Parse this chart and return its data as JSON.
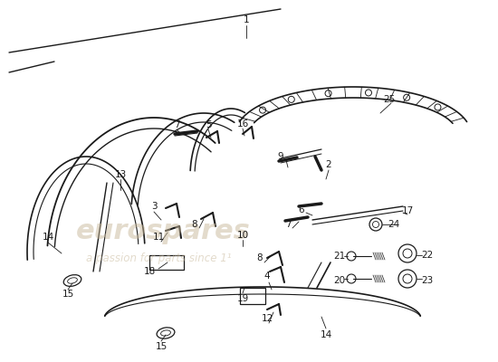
{
  "bg_color": "#ffffff",
  "line_color": "#1a1a1a",
  "watermark_color": "#c8b89a",
  "fig_width": 5.5,
  "fig_height": 4.0,
  "dpi": 100
}
